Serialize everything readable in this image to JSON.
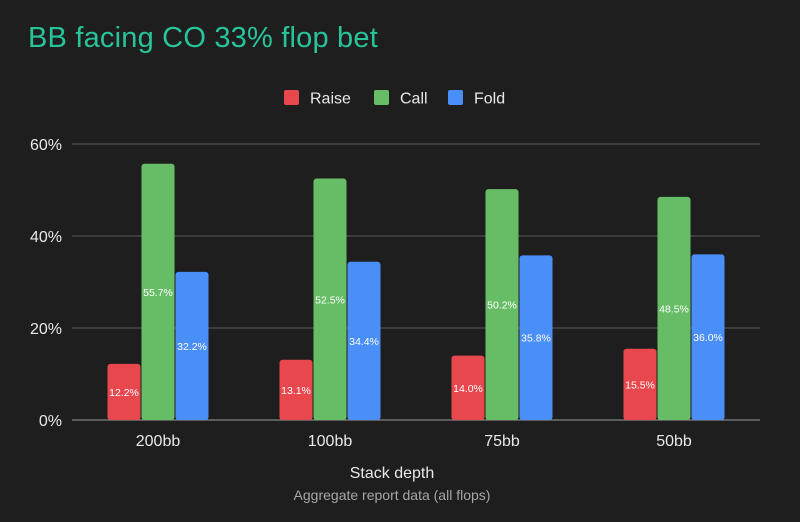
{
  "chart_data": {
    "type": "bar",
    "title": "BB facing CO 33% flop bet",
    "xlabel": "Stack depth",
    "subtitle": "Aggregate report data (all flops)",
    "ylabel": "",
    "categories": [
      "200bb",
      "100bb",
      "75bb",
      "50bb"
    ],
    "series": [
      {
        "name": "Raise",
        "color": "#e8474d",
        "values": [
          12.2,
          13.1,
          14.0,
          15.5
        ],
        "labels": [
          "12.2%",
          "13.1%",
          "14.0%",
          "15.5%"
        ]
      },
      {
        "name": "Call",
        "color": "#67bd66",
        "values": [
          55.7,
          52.5,
          50.2,
          48.5
        ],
        "labels": [
          "55.7%",
          "52.5%",
          "50.2%",
          "48.5%"
        ]
      },
      {
        "name": "Fold",
        "color": "#4a8ef7",
        "values": [
          32.2,
          34.4,
          35.8,
          36.0
        ],
        "labels": [
          "32.2%",
          "34.4%",
          "35.8%",
          "36.0%"
        ]
      }
    ],
    "yticks": [
      "0%",
      "20%",
      "40%",
      "60%"
    ],
    "ytick_values": [
      0,
      20,
      40,
      60
    ],
    "ylim": [
      0,
      60
    ],
    "grid": true,
    "legend_position": "top-center"
  }
}
